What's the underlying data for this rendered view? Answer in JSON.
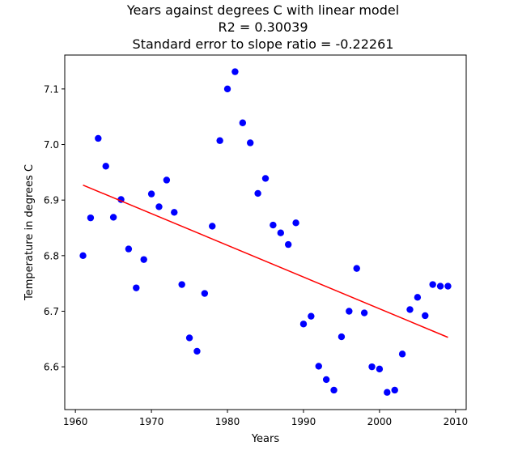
{
  "chart_data": {
    "type": "scatter",
    "title_lines": [
      "Years against degrees C with linear model",
      "R2 = 0.30039",
      "Standard error to slope ratio = -0.22261"
    ],
    "xlabel": "Years",
    "ylabel": "Temperature in degrees C",
    "xlim": [
      1958.6,
      2011.4
    ],
    "ylim": [
      6.523,
      7.161
    ],
    "xticks": [
      1960,
      1970,
      1980,
      1990,
      2000,
      2010
    ],
    "yticks": [
      6.6,
      6.7,
      6.8,
      6.9,
      7.0,
      7.1
    ],
    "grid": false,
    "series": [
      {
        "marker_color": "#0000ff",
        "x": [
          1961,
          1962,
          1963,
          1964,
          1965,
          1966,
          1967,
          1968,
          1969,
          1970,
          1971,
          1972,
          1973,
          1974,
          1975,
          1976,
          1977,
          1978,
          1979,
          1980,
          1981,
          1982,
          1983,
          1984,
          1985,
          1986,
          1987,
          1988,
          1989,
          1990,
          1991,
          1992,
          1993,
          1994,
          1995,
          1996,
          1997,
          1998,
          1999,
          2000,
          2001,
          2002,
          2003,
          2004,
          2005,
          2006,
          2007,
          2008,
          2009
        ],
        "y": [
          6.8,
          6.868,
          7.011,
          6.961,
          6.869,
          6.901,
          6.812,
          6.742,
          6.793,
          6.911,
          6.888,
          6.936,
          6.878,
          6.748,
          6.652,
          6.628,
          6.732,
          6.853,
          7.007,
          7.1,
          7.131,
          7.039,
          7.003,
          6.912,
          6.939,
          6.855,
          6.841,
          6.82,
          6.859,
          6.677,
          6.691,
          6.601,
          6.577,
          6.558,
          6.654,
          6.7,
          6.777,
          6.697,
          6.6,
          6.596,
          6.554,
          6.558,
          6.623,
          6.703,
          6.725,
          6.692,
          6.748,
          6.745,
          6.745
        ]
      }
    ],
    "fit_line": {
      "line_color": "#ff0000",
      "x": [
        1961,
        2009
      ],
      "y": [
        6.927,
        6.653
      ]
    }
  }
}
